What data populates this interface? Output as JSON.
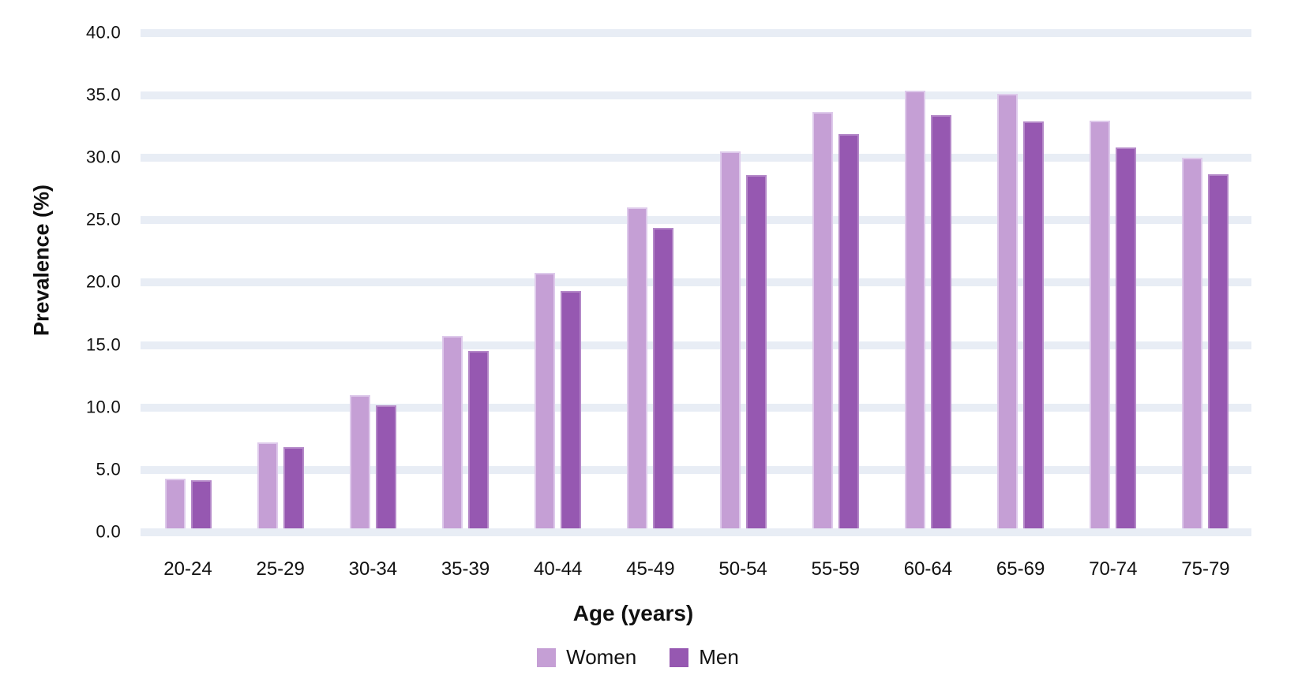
{
  "chart_data": {
    "type": "bar",
    "title": "",
    "xlabel": "Age (years)",
    "ylabel": "Prevalence (%)",
    "categories": [
      "20-24",
      "25-29",
      "30-34",
      "35-39",
      "40-44",
      "45-49",
      "50-54",
      "55-59",
      "60-64",
      "65-69",
      "70-74",
      "75-79"
    ],
    "series": [
      {
        "name": "Women",
        "color": "#c59fd5",
        "border_color": "#decaeb",
        "values": [
          4.3,
          7.2,
          11.0,
          15.7,
          20.8,
          26.0,
          30.5,
          33.7,
          35.4,
          35.1,
          33.0,
          30.0
        ]
      },
      {
        "name": "Men",
        "color": "#9658b1",
        "border_color": "#b488c8",
        "values": [
          4.2,
          6.8,
          10.2,
          14.5,
          19.3,
          24.4,
          28.6,
          31.9,
          33.4,
          32.9,
          30.8,
          28.7
        ]
      }
    ],
    "ylim": [
      0,
      40
    ],
    "ytick_step": 5,
    "ytick_labels": [
      "0.0",
      "5.0",
      "10.0",
      "15.0",
      "20.0",
      "25.0",
      "30.0",
      "35.0",
      "40.0"
    ],
    "grid": "horizontal-bands",
    "legend_position": "bottom"
  },
  "colors": {
    "grid_band": "#e8edf5",
    "background": "#ffffff",
    "text": "#111111"
  }
}
